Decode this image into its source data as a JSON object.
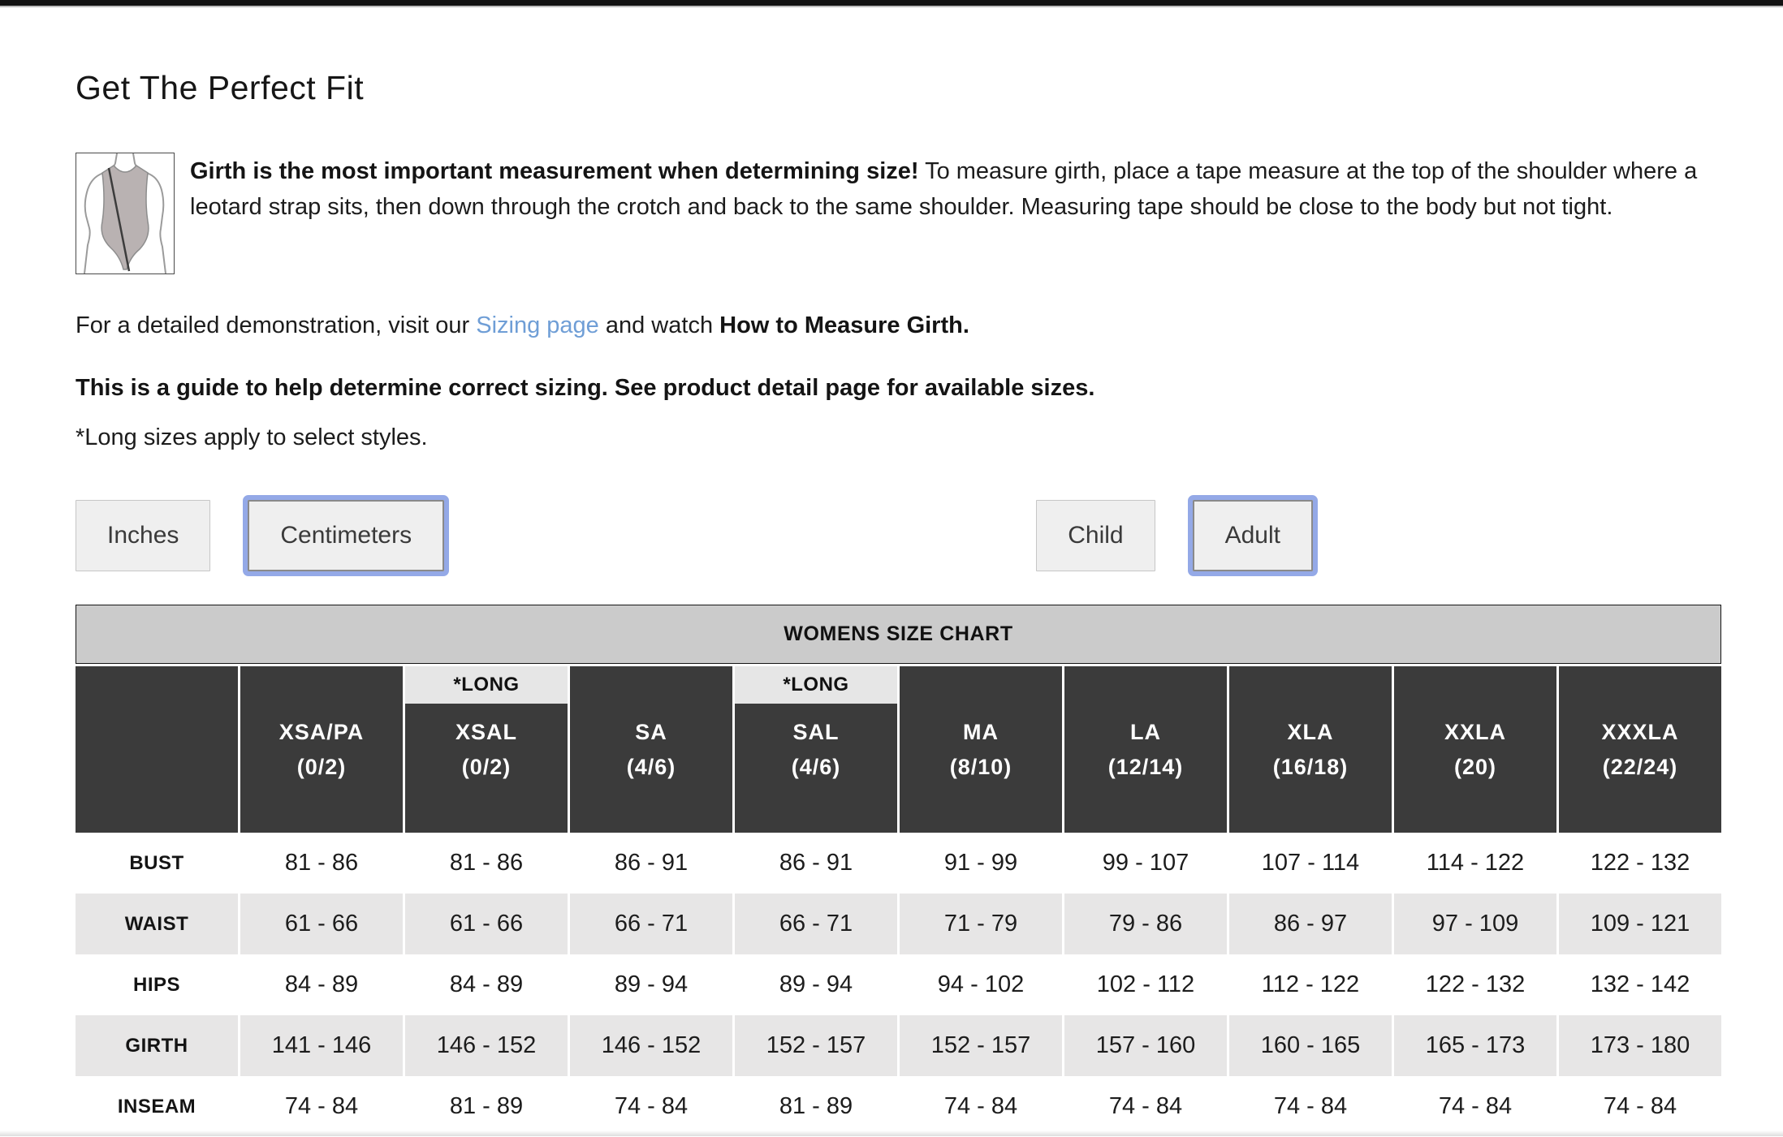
{
  "page": {
    "title": "Get The Perfect Fit",
    "intro_bold": "Girth is the most important measurement when determining size!",
    "intro_rest": " To measure girth, place a tape measure at the top of the shoulder where a leotard strap sits, then down through the crotch and back to the same shoulder. Measuring tape should be close to the body but not tight.",
    "demo_prefix": "For a detailed demonstration, visit our ",
    "demo_link": "Sizing page",
    "demo_mid": " and watch ",
    "demo_bold": "How to Measure Girth.",
    "guide_note": "This is a guide to help determine correct sizing. See product detail page for available sizes.",
    "long_note": "*Long sizes apply to select styles."
  },
  "toggles": {
    "units": [
      {
        "label": "Inches",
        "selected": false
      },
      {
        "label": "Centimeters",
        "selected": true
      }
    ],
    "age": [
      {
        "label": "Child",
        "selected": false
      },
      {
        "label": "Adult",
        "selected": true
      }
    ]
  },
  "colors": {
    "link_blue": "#6f9ed6",
    "focus_ring_blue": "#94a9e7",
    "header_dark": "#3b3b3b",
    "banner_gray": "#cbcbcb",
    "row_gray": "#e7e6e6",
    "button_gray": "#efefef"
  },
  "chart": {
    "title": "WOMENS SIZE CHART",
    "long_tag": "*LONG",
    "columns": [
      {
        "name": "XSA/PA",
        "sub": "(0/2)",
        "long": false
      },
      {
        "name": "XSAL",
        "sub": "(0/2)",
        "long": true
      },
      {
        "name": "SA",
        "sub": "(4/6)",
        "long": false
      },
      {
        "name": "SAL",
        "sub": "(4/6)",
        "long": true
      },
      {
        "name": "MA",
        "sub": "(8/10)",
        "long": false
      },
      {
        "name": "LA",
        "sub": "(12/14)",
        "long": false
      },
      {
        "name": "XLA",
        "sub": "(16/18)",
        "long": false
      },
      {
        "name": "XXLA",
        "sub": "(20)",
        "long": false
      },
      {
        "name": "XXXLA",
        "sub": "(22/24)",
        "long": false
      }
    ],
    "rows": [
      {
        "label": "BUST",
        "values": [
          "81 - 86",
          "81 - 86",
          "86 - 91",
          "86 - 91",
          "91 - 99",
          "99 - 107",
          "107 - 114",
          "114 - 122",
          "122 - 132"
        ]
      },
      {
        "label": "WAIST",
        "values": [
          "61 - 66",
          "61 - 66",
          "66 - 71",
          "66 - 71",
          "71 - 79",
          "79 - 86",
          "86 - 97",
          "97 - 109",
          "109 - 121"
        ]
      },
      {
        "label": "HIPS",
        "values": [
          "84 - 89",
          "84 - 89",
          "89 - 94",
          "89 - 94",
          "94 - 102",
          "102 - 112",
          "112 - 122",
          "122 - 132",
          "132 - 142"
        ]
      },
      {
        "label": "GIRTH",
        "values": [
          "141 - 146",
          "146 - 152",
          "146 - 152",
          "152 - 157",
          "152 - 157",
          "157 - 160",
          "160 - 165",
          "165 - 173",
          "173 - 180"
        ]
      },
      {
        "label": "INSEAM",
        "values": [
          "74 - 84",
          "81 - 89",
          "74 - 84",
          "81 - 89",
          "74 - 84",
          "74 - 84",
          "74 - 84",
          "74 - 84",
          "74 - 84"
        ]
      }
    ]
  }
}
